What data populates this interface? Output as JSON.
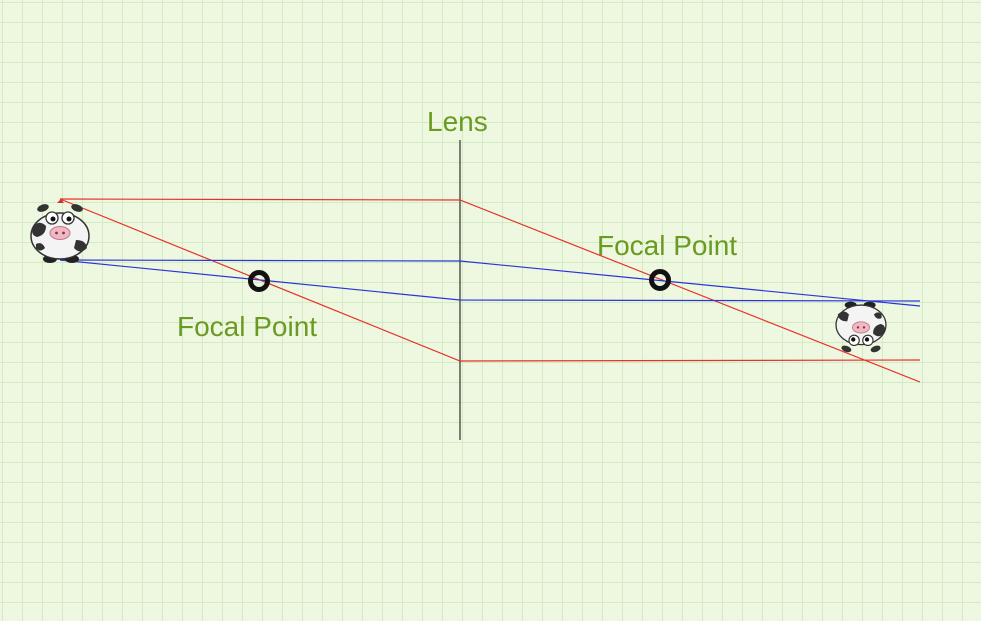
{
  "labels": {
    "lens": "Lens",
    "focal_point_left": "Focal Point",
    "focal_point_right": "Focal Point"
  },
  "colors": {
    "background": "#eef8e0",
    "grid": "#d3ebc2",
    "label": "#6b9a22",
    "lens": "#555555",
    "ray_red": "#e8302a",
    "ray_blue": "#2a35d8",
    "focal_marker": "#111111"
  },
  "objects": {
    "object_icon": "cow-icon",
    "image_icon": "inverted-cow-icon"
  }
}
